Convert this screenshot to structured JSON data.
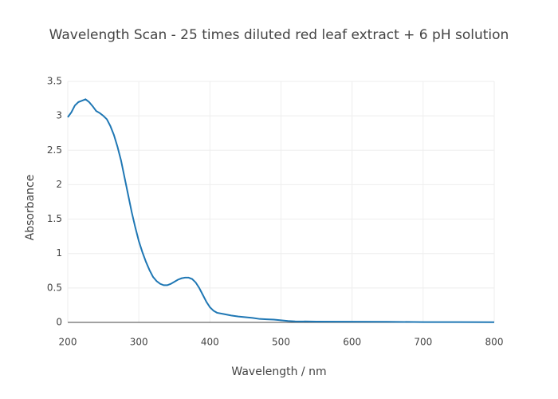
{
  "chart_data": {
    "type": "line",
    "title": "Wavelength Scan - 25 times diluted red leaf extract + 6 pH solution",
    "x_label": "Wavelength / nm",
    "y_label": "Absorbance",
    "x": [
      200,
      205,
      210,
      215,
      220,
      225,
      230,
      235,
      240,
      245,
      250,
      255,
      260,
      265,
      270,
      275,
      280,
      285,
      290,
      295,
      300,
      305,
      310,
      315,
      320,
      325,
      330,
      335,
      340,
      345,
      350,
      355,
      360,
      365,
      370,
      375,
      380,
      385,
      390,
      395,
      400,
      405,
      410,
      420,
      430,
      440,
      450,
      460,
      470,
      480,
      490,
      500,
      510,
      520,
      550,
      600,
      650,
      700,
      750,
      800
    ],
    "series": [
      {
        "name": "Absorbance",
        "color": "#1f77b4",
        "values": [
          2.98,
          3.05,
          3.15,
          3.2,
          3.22,
          3.24,
          3.2,
          3.14,
          3.07,
          3.04,
          3.0,
          2.95,
          2.85,
          2.72,
          2.55,
          2.35,
          2.1,
          1.85,
          1.6,
          1.38,
          1.18,
          1.02,
          0.88,
          0.76,
          0.66,
          0.6,
          0.56,
          0.54,
          0.54,
          0.56,
          0.59,
          0.62,
          0.64,
          0.65,
          0.65,
          0.63,
          0.58,
          0.5,
          0.4,
          0.3,
          0.22,
          0.17,
          0.14,
          0.12,
          0.1,
          0.085,
          0.075,
          0.065,
          0.05,
          0.045,
          0.04,
          0.03,
          0.02,
          0.015,
          0.012,
          0.01,
          0.008,
          0.005,
          0.004,
          0.003
        ]
      }
    ],
    "xlim": [
      200,
      800
    ],
    "xticks": [
      200,
      300,
      400,
      500,
      600,
      700,
      800
    ],
    "ylim": [
      0,
      3.5
    ],
    "yticks": [
      0,
      0.5,
      1,
      1.5,
      2,
      2.5,
      3,
      3.5
    ],
    "grid": true
  }
}
